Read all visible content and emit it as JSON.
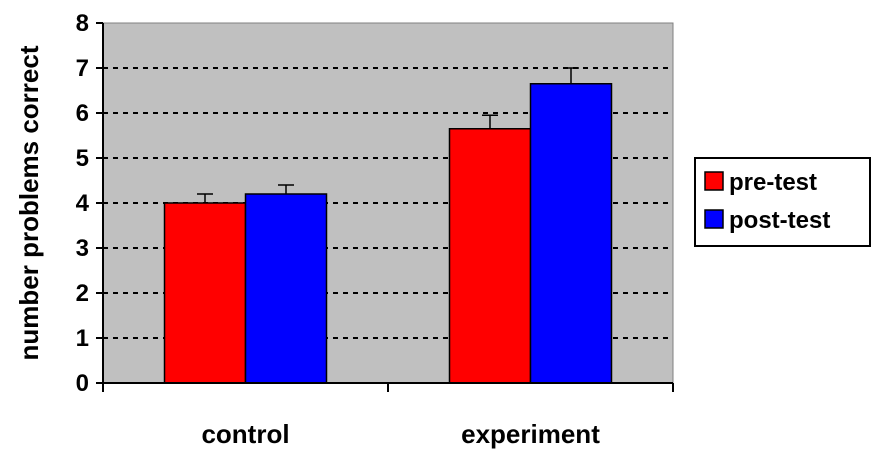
{
  "chart_data": {
    "type": "bar",
    "title": "",
    "xlabel": "",
    "ylabel": "number problems correct",
    "ylim": [
      0,
      8
    ],
    "yticks": [
      0,
      1,
      2,
      3,
      4,
      5,
      6,
      7,
      8
    ],
    "categories": [
      "control",
      "experiment"
    ],
    "series": [
      {
        "name": "pre-test",
        "color": "#ff0000",
        "values": [
          4.0,
          5.65
        ],
        "errors": [
          0.2,
          0.3
        ]
      },
      {
        "name": "post-test",
        "color": "#0000ff",
        "values": [
          4.2,
          6.65
        ],
        "errors": [
          0.2,
          0.35
        ]
      }
    ],
    "plot_background": "#c0c0c0",
    "grid": "horizontal dotted",
    "legend_position": "right"
  }
}
